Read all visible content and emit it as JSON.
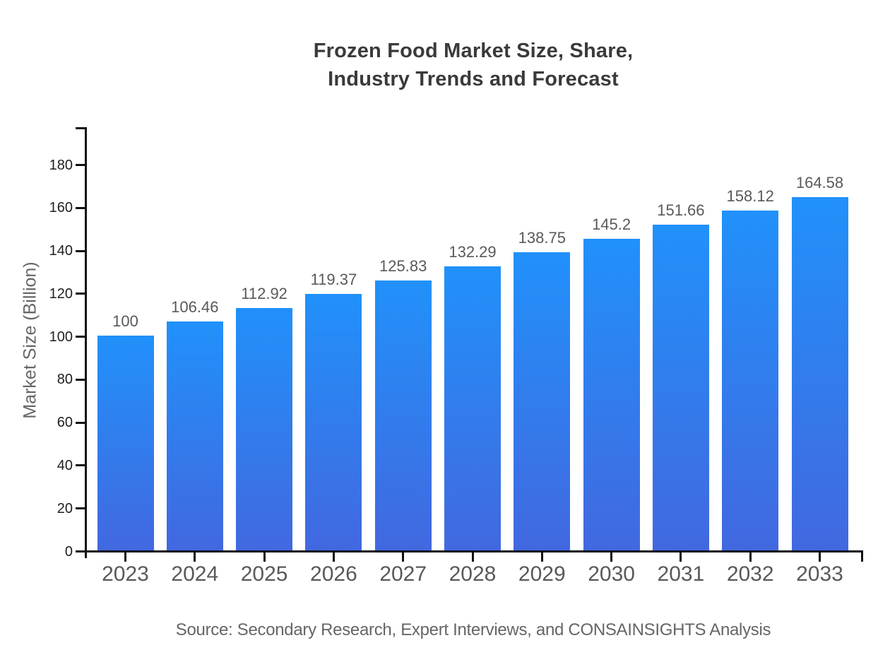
{
  "title": {
    "line1": "Frozen Food Market Size, Share,",
    "line2": "Industry Trends and Forecast"
  },
  "source": "Source: Secondary Research, Expert Interviews, and CONSAINSIGHTS Analysis",
  "chart_data": {
    "type": "bar",
    "title": "Frozen Food Market Size, Share, Industry Trends and Forecast",
    "xlabel": "",
    "ylabel": "Market Size (Billion)",
    "categories": [
      "2023",
      "2024",
      "2025",
      "2026",
      "2027",
      "2028",
      "2029",
      "2030",
      "2031",
      "2032",
      "2033"
    ],
    "values": [
      100,
      106.46,
      112.92,
      119.37,
      125.83,
      132.29,
      138.75,
      145.2,
      151.66,
      158.12,
      164.58
    ],
    "value_labels": [
      "100",
      "106.46",
      "112.92",
      "119.37",
      "125.83",
      "132.29",
      "138.75",
      "145.2",
      "151.66",
      "158.12",
      "164.58"
    ],
    "ylim": [
      0,
      180
    ],
    "yticks": [
      0,
      20,
      40,
      60,
      80,
      100,
      120,
      140,
      160,
      180
    ],
    "grid": false,
    "legend": false,
    "colors": {
      "bar_gradient_top": "#2191fa",
      "bar_gradient_bottom": "#4268e0",
      "axis": "#111111",
      "ytick_text": "#1f1f1f",
      "xtick_text": "#595959",
      "value_text": "#595959",
      "title_text": "#3a3a3a",
      "muted_text": "#666666"
    }
  }
}
